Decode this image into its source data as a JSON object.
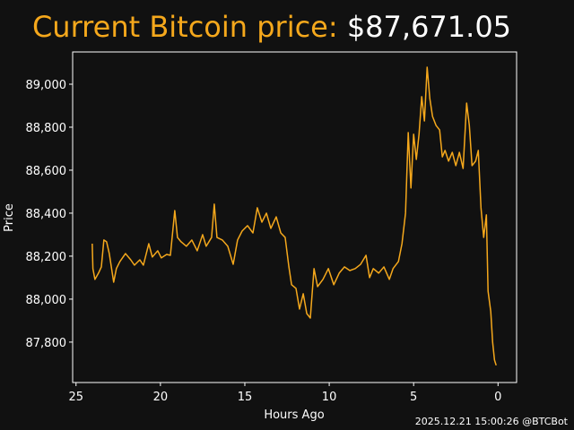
{
  "chart_data": {
    "type": "line",
    "title": "Current Bitcoin price:",
    "title_value": "$87,671.05",
    "xlabel": "Hours Ago",
    "ylabel": "Price",
    "footer": "2025.12.21 15:00:26 @BTCBot",
    "color": "#f5a81c",
    "title_color": "#f5a81c",
    "xlim": [
      25.2,
      -1.1
    ],
    "ylim": [
      87612,
      89150
    ],
    "xticks": [
      25,
      20,
      15,
      10,
      5,
      0
    ],
    "yticks": [
      {
        "value": 87800,
        "label": "87,800"
      },
      {
        "value": 88000,
        "label": "88,000"
      },
      {
        "value": 88200,
        "label": "88,200"
      },
      {
        "value": 88400,
        "label": "88,400"
      },
      {
        "value": 88600,
        "label": "88,600"
      },
      {
        "value": 88800,
        "label": "88,800"
      },
      {
        "value": 89000,
        "label": "89,000"
      }
    ],
    "x": [
      24.04,
      24.0,
      23.88,
      23.67,
      23.5,
      23.35,
      23.19,
      23.03,
      22.77,
      22.61,
      22.4,
      22.07,
      21.76,
      21.54,
      21.22,
      21.01,
      20.69,
      20.48,
      20.16,
      19.95,
      19.63,
      19.41,
      19.15,
      18.99,
      18.78,
      18.46,
      18.14,
      17.82,
      17.5,
      17.29,
      16.97,
      16.81,
      16.65,
      16.33,
      16.01,
      15.69,
      15.43,
      15.16,
      14.84,
      14.52,
      14.26,
      13.99,
      13.72,
      13.46,
      13.14,
      12.87,
      12.61,
      12.39,
      12.23,
      11.97,
      11.76,
      11.54,
      11.33,
      11.12,
      10.9,
      10.69,
      10.37,
      10.05,
      9.73,
      9.41,
      9.1,
      8.78,
      8.46,
      8.14,
      7.82,
      7.61,
      7.39,
      7.07,
      6.76,
      6.44,
      6.22,
      5.9,
      5.69,
      5.48,
      5.32,
      5.16,
      5.0,
      4.84,
      4.68,
      4.52,
      4.36,
      4.2,
      4.04,
      3.88,
      3.67,
      3.46,
      3.3,
      3.14,
      2.93,
      2.71,
      2.5,
      2.29,
      2.07,
      1.86,
      1.7,
      1.54,
      1.33,
      1.17,
      1.01,
      0.85,
      0.69,
      0.59,
      0.43,
      0.32,
      0.21,
      0.11
    ],
    "values": [
      88258,
      88142,
      88092,
      88121,
      88150,
      88275,
      88267,
      88212,
      88079,
      88142,
      88175,
      88212,
      88183,
      88158,
      88183,
      88158,
      88258,
      88196,
      88225,
      88192,
      88208,
      88204,
      88412,
      88287,
      88267,
      88246,
      88275,
      88225,
      88300,
      88246,
      88287,
      88442,
      88287,
      88275,
      88246,
      88162,
      88275,
      88317,
      88342,
      88308,
      88425,
      88358,
      88400,
      88329,
      88383,
      88308,
      88287,
      88150,
      88067,
      88050,
      87954,
      88025,
      87933,
      87912,
      88142,
      88058,
      88092,
      88142,
      88067,
      88121,
      88150,
      88133,
      88142,
      88162,
      88204,
      88100,
      88142,
      88121,
      88150,
      88092,
      88142,
      88175,
      88258,
      88400,
      88775,
      88517,
      88767,
      88650,
      88767,
      88942,
      88829,
      89079,
      88933,
      88850,
      88808,
      88787,
      88662,
      88692,
      88642,
      88683,
      88621,
      88683,
      88608,
      88912,
      88808,
      88621,
      88642,
      88692,
      88425,
      88287,
      88392,
      88037,
      87942,
      87800,
      87717,
      87692
    ]
  }
}
